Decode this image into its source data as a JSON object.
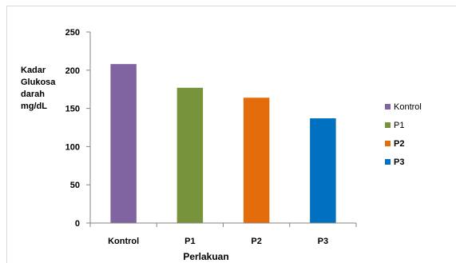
{
  "chart_data": {
    "type": "bar",
    "categories": [
      "Kontrol",
      "P1",
      "P2",
      "P3"
    ],
    "values": [
      208,
      177,
      164,
      137
    ],
    "colors": [
      "#8064a2",
      "#77933c",
      "#e46c0a",
      "#0070c0"
    ],
    "title": "",
    "xlabel": "Perlakuan",
    "ylabel": "Kadar\nGlukosa\ndarah\nmg/dL",
    "ylim": [
      0,
      250
    ],
    "yticks": [
      "0",
      "50",
      "100",
      "150",
      "200",
      "250"
    ],
    "grid": false,
    "legend_position": "right",
    "legend": [
      {
        "label": "Kontrol",
        "color": "#8064a2",
        "bold": false
      },
      {
        "label": "P1",
        "color": "#77933c",
        "bold": false
      },
      {
        "label": "P2",
        "color": "#e46c0a",
        "bold": true
      },
      {
        "label": "P3",
        "color": "#0070c0",
        "bold": true
      }
    ]
  }
}
